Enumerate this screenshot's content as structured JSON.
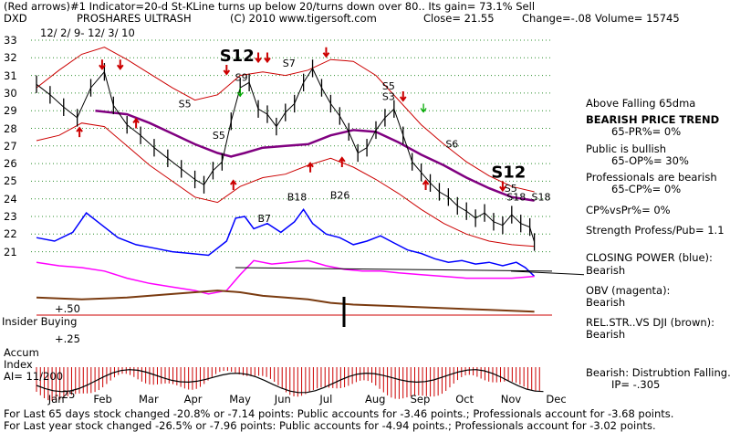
{
  "header": {
    "line1": "(Red arrows)#1 Indicator=20-d St-KLine turns up below 20/turns down over 80.. Its gain= 73.1% Sell",
    "symbol": "DXD",
    "name": "PROSHARES ULTRASH",
    "copyright": "(C) 2010 www.tigersoft.com",
    "close": "Close=   21.55",
    "change": "Change=-.08",
    "volume": "Volume=  15745",
    "dates": "12/ 2/ 9- 12/ 3/ 10"
  },
  "colors": {
    "price": "#000000",
    "bands": "#cc0000",
    "ma65": "#800080",
    "closing_power": "#0000ff",
    "obv": "#ff00ff",
    "relstr": "#7a3b10",
    "accum": "#cc0000",
    "grid": "#2f8f2f"
  },
  "right_panel": {
    "ma": "Above Falling 65dma",
    "trend_title": "BEARISH PRICE TREND",
    "trend_value": "65-PR%= 0%",
    "public_title": "Public is bullish",
    "public_value": "65-OP%= 30%",
    "pros_title": "Professionals are bearish",
    "pros_value": "65-CP%= 0%",
    "cpvspr": "CP%vsPr%=  0%",
    "strength": "Strength Profess/Pub= 1.1",
    "cp_title": "CLOSING POWER (blue):",
    "cp_value": "Bearish",
    "obv_title": "OBV (magenta):",
    "obv_value": "Bearish",
    "relstr_title": "REL.STR..VS DJI (brown):",
    "relstr_value": "Bearish",
    "accum_title": "Bearish: Distrubtion Falling.",
    "accum_value": "IP= -.305"
  },
  "left_panel": {
    "insider": "Insider Buying",
    "accum_l1": "Accum",
    "accum_l2": "Index",
    "ai": "AI= 11/200"
  },
  "footer": {
    "line1": "For Last 65 days stock changed -20.8% or -7.14 points:  Public accounts for -3.46 points.;  Professionals account for -3.68 points.",
    "line2": "For Last year stock changed -26.5% or -7.96 points:  Public accounts for -4.94 points.;  Professionals account for -3.02 points."
  },
  "chart_data": {
    "type": "line",
    "title": "PROSHARES ULTRASH",
    "y_ticks": [
      "33",
      "32",
      "31",
      "30",
      "29",
      "28",
      "27",
      "26",
      "25",
      "24",
      "23",
      "22",
      "21"
    ],
    "ylim": [
      20.5,
      33.5
    ],
    "lower_ticks": [
      "+.50",
      "+.25",
      "-.25"
    ],
    "x_labels": [
      "Jan",
      "Feb",
      "Mar",
      "Apr",
      "May",
      "Jun",
      "Jul",
      "Aug",
      "Sep",
      "Oct",
      "Nov",
      "Dec"
    ],
    "x_label_pos": [
      0.5,
      1.5,
      2.5,
      3.5,
      4.5,
      5.5,
      6.5,
      7.5,
      8.5,
      9.5,
      10.5,
      11.5
    ],
    "price": [
      [
        0,
        30.5
      ],
      [
        0.3,
        29.9
      ],
      [
        0.6,
        29.2
      ],
      [
        0.9,
        28.6
      ],
      [
        1.2,
        30.3
      ],
      [
        1.5,
        31.2
      ],
      [
        1.7,
        29.3
      ],
      [
        2.0,
        28.2
      ],
      [
        2.3,
        27.6
      ],
      [
        2.6,
        26.9
      ],
      [
        2.9,
        26.3
      ],
      [
        3.2,
        25.7
      ],
      [
        3.5,
        25.1
      ],
      [
        3.7,
        24.8
      ],
      [
        3.9,
        25.6
      ],
      [
        4.1,
        26.1
      ],
      [
        4.3,
        28.4
      ],
      [
        4.5,
        30.3
      ],
      [
        4.7,
        30.6
      ],
      [
        4.9,
        29.1
      ],
      [
        5.1,
        28.8
      ],
      [
        5.3,
        28.1
      ],
      [
        5.5,
        28.9
      ],
      [
        5.7,
        29.4
      ],
      [
        5.9,
        30.6
      ],
      [
        6.1,
        31.4
      ],
      [
        6.3,
        30.3
      ],
      [
        6.5,
        29.4
      ],
      [
        6.7,
        28.7
      ],
      [
        6.9,
        27.8
      ],
      [
        7.1,
        26.6
      ],
      [
        7.3,
        26.9
      ],
      [
        7.5,
        27.9
      ],
      [
        7.7,
        28.6
      ],
      [
        7.9,
        29.1
      ],
      [
        8.1,
        27.6
      ],
      [
        8.3,
        26.1
      ],
      [
        8.5,
        25.5
      ],
      [
        8.7,
        24.9
      ],
      [
        8.9,
        24.4
      ],
      [
        9.1,
        24.1
      ],
      [
        9.3,
        23.6
      ],
      [
        9.5,
        23.3
      ],
      [
        9.7,
        22.9
      ],
      [
        9.9,
        23.2
      ],
      [
        10.1,
        22.7
      ],
      [
        10.3,
        22.5
      ],
      [
        10.5,
        23.1
      ],
      [
        10.7,
        22.6
      ],
      [
        10.9,
        22.4
      ],
      [
        11.0,
        21.55
      ]
    ],
    "upper_band": [
      [
        0,
        30.3
      ],
      [
        0.5,
        31.3
      ],
      [
        1.0,
        32.2
      ],
      [
        1.5,
        32.6
      ],
      [
        2.0,
        31.9
      ],
      [
        2.5,
        31.1
      ],
      [
        3.0,
        30.3
      ],
      [
        3.5,
        29.6
      ],
      [
        4.0,
        29.9
      ],
      [
        4.5,
        31.0
      ],
      [
        5.0,
        31.2
      ],
      [
        5.5,
        31.0
      ],
      [
        6.0,
        31.3
      ],
      [
        6.5,
        31.9
      ],
      [
        7.0,
        31.8
      ],
      [
        7.5,
        31.0
      ],
      [
        8.0,
        29.6
      ],
      [
        8.5,
        28.2
      ],
      [
        9.0,
        27.1
      ],
      [
        9.5,
        26.1
      ],
      [
        10.0,
        25.3
      ],
      [
        10.5,
        24.7
      ],
      [
        11.0,
        24.4
      ]
    ],
    "lower_band": [
      [
        0,
        27.3
      ],
      [
        0.5,
        27.6
      ],
      [
        1.0,
        28.3
      ],
      [
        1.5,
        28.1
      ],
      [
        2.0,
        27.0
      ],
      [
        2.5,
        25.9
      ],
      [
        3.0,
        25.0
      ],
      [
        3.5,
        24.1
      ],
      [
        4.0,
        23.8
      ],
      [
        4.5,
        24.7
      ],
      [
        5.0,
        25.2
      ],
      [
        5.5,
        25.4
      ],
      [
        6.0,
        25.9
      ],
      [
        6.5,
        26.3
      ],
      [
        7.0,
        25.8
      ],
      [
        7.5,
        25.1
      ],
      [
        8.0,
        24.3
      ],
      [
        8.5,
        23.4
      ],
      [
        9.0,
        22.6
      ],
      [
        9.5,
        22.0
      ],
      [
        10.0,
        21.6
      ],
      [
        10.5,
        21.4
      ],
      [
        11.0,
        21.3
      ]
    ],
    "ma65": [
      [
        1.3,
        29.0
      ],
      [
        2.0,
        28.8
      ],
      [
        2.5,
        28.3
      ],
      [
        3.0,
        27.7
      ],
      [
        3.5,
        27.1
      ],
      [
        4.0,
        26.6
      ],
      [
        4.3,
        26.4
      ],
      [
        4.6,
        26.6
      ],
      [
        5.0,
        26.9
      ],
      [
        5.5,
        27.0
      ],
      [
        6.0,
        27.1
      ],
      [
        6.5,
        27.6
      ],
      [
        7.0,
        27.9
      ],
      [
        7.5,
        27.8
      ],
      [
        8.0,
        27.2
      ],
      [
        8.5,
        26.5
      ],
      [
        9.0,
        25.9
      ],
      [
        9.5,
        25.2
      ],
      [
        10.0,
        24.6
      ],
      [
        10.5,
        24.1
      ],
      [
        11.0,
        23.9
      ]
    ],
    "closing_power": [
      [
        0,
        21.8
      ],
      [
        0.4,
        21.6
      ],
      [
        0.8,
        22.1
      ],
      [
        1.1,
        23.2
      ],
      [
        1.4,
        22.6
      ],
      [
        1.8,
        21.8
      ],
      [
        2.2,
        21.4
      ],
      [
        2.6,
        21.2
      ],
      [
        3.0,
        21.0
      ],
      [
        3.4,
        20.9
      ],
      [
        3.8,
        20.8
      ],
      [
        4.2,
        21.6
      ],
      [
        4.4,
        22.9
      ],
      [
        4.6,
        23.0
      ],
      [
        4.8,
        22.3
      ],
      [
        5.1,
        22.6
      ],
      [
        5.4,
        22.1
      ],
      [
        5.7,
        22.7
      ],
      [
        5.9,
        23.4
      ],
      [
        6.1,
        22.6
      ],
      [
        6.4,
        22.0
      ],
      [
        6.7,
        21.8
      ],
      [
        7.0,
        21.4
      ],
      [
        7.3,
        21.6
      ],
      [
        7.6,
        21.9
      ],
      [
        7.9,
        21.5
      ],
      [
        8.2,
        21.1
      ],
      [
        8.5,
        20.9
      ],
      [
        8.8,
        20.6
      ],
      [
        9.1,
        20.4
      ],
      [
        9.4,
        20.5
      ],
      [
        9.7,
        20.3
      ],
      [
        10.0,
        20.4
      ],
      [
        10.3,
        20.2
      ],
      [
        10.6,
        20.4
      ],
      [
        10.8,
        20.1
      ],
      [
        11.0,
        19.6
      ]
    ],
    "obv": [
      [
        0,
        20.4
      ],
      [
        0.5,
        20.2
      ],
      [
        1.0,
        20.1
      ],
      [
        1.5,
        19.9
      ],
      [
        2.0,
        19.5
      ],
      [
        2.5,
        19.2
      ],
      [
        3.0,
        19.0
      ],
      [
        3.5,
        18.8
      ],
      [
        3.8,
        18.6
      ],
      [
        4.2,
        18.8
      ],
      [
        4.5,
        19.7
      ],
      [
        4.8,
        20.5
      ],
      [
        5.2,
        20.3
      ],
      [
        5.6,
        20.4
      ],
      [
        6.0,
        20.5
      ],
      [
        6.4,
        20.2
      ],
      [
        6.8,
        20.0
      ],
      [
        7.2,
        19.9
      ],
      [
        7.6,
        19.9
      ],
      [
        8.0,
        19.8
      ],
      [
        8.5,
        19.7
      ],
      [
        9.0,
        19.6
      ],
      [
        9.5,
        19.5
      ],
      [
        10.0,
        19.5
      ],
      [
        10.5,
        19.5
      ],
      [
        11.0,
        19.6
      ]
    ],
    "relstr": [
      [
        0,
        18.4
      ],
      [
        1.0,
        18.3
      ],
      [
        2.0,
        18.4
      ],
      [
        3.0,
        18.6
      ],
      [
        4.0,
        18.8
      ],
      [
        4.5,
        18.7
      ],
      [
        5.0,
        18.5
      ],
      [
        5.5,
        18.4
      ],
      [
        6.0,
        18.3
      ],
      [
        6.5,
        18.1
      ],
      [
        7.0,
        18.0
      ],
      [
        8.0,
        17.9
      ],
      [
        9.0,
        17.8
      ],
      [
        10.0,
        17.7
      ],
      [
        11.0,
        17.6
      ]
    ],
    "annotations": [
      "S12",
      "S9",
      "S7",
      "S5",
      "S5",
      "S5",
      "S3",
      "S6",
      "S5",
      "S18",
      "S18",
      "S12",
      "B18",
      "B26",
      "B7"
    ]
  }
}
